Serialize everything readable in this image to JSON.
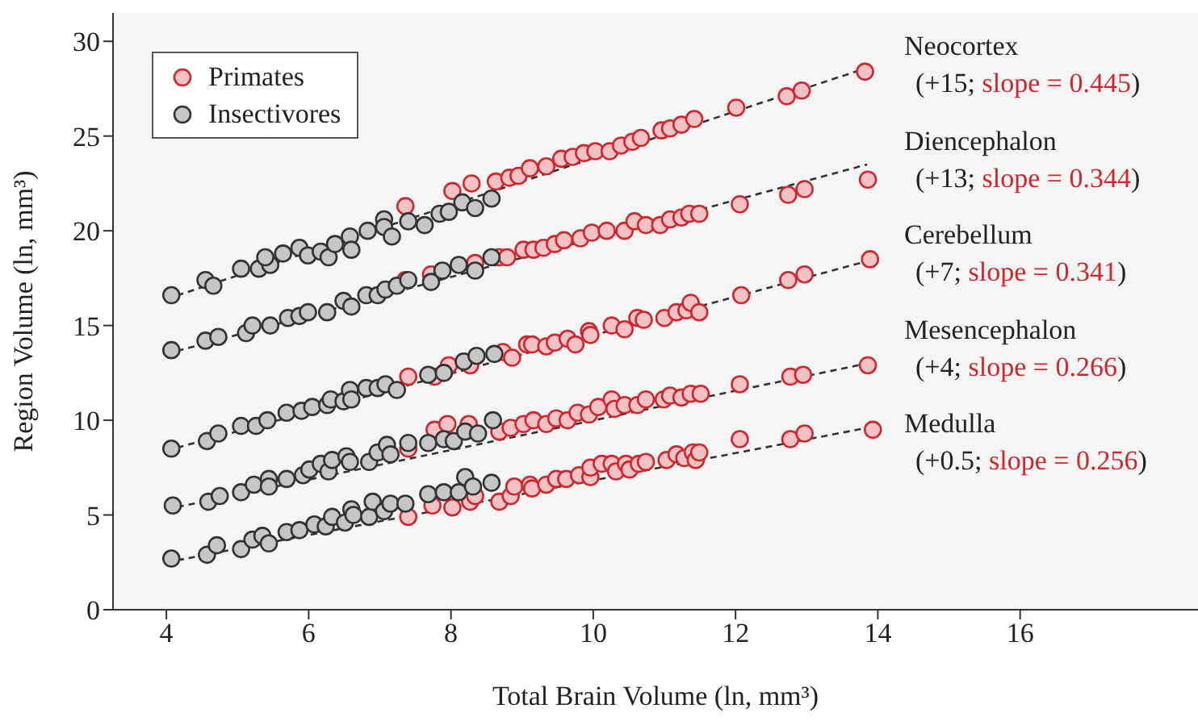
{
  "chart_data": {
    "type": "scatter",
    "xlabel": "Total Brain Volume (ln, mm³)",
    "ylabel": "Region Volume (ln, mm³)",
    "xlim": [
      3.25,
      18.5
    ],
    "ylim": [
      0,
      31.5
    ],
    "xticks": [
      4,
      6,
      8,
      10,
      12,
      14,
      16
    ],
    "yticks": [
      0,
      5,
      10,
      15,
      20,
      25,
      30
    ],
    "legend": "top left",
    "annotations": [
      "Neocortex",
      "(+15; slope = 0.445)",
      "Diencephalon",
      "(+13; slope = 0.344)",
      "Cerebellum",
      "(+7; slope = 0.341)",
      "Mesencephalon",
      "(+4; slope = 0.266)",
      "Medulla",
      "(+0.5; slope = 0.256)"
    ],
    "series": [
      {
        "name": "Primates",
        "marker": "circle",
        "color": "#d0262e",
        "x": [
          7.36,
          8.02,
          8.29,
          8.63,
          8.82,
          8.95,
          9.11,
          9.34,
          9.55,
          9.71,
          9.87,
          10.03,
          10.23,
          10.39,
          10.55,
          10.67,
          10.96,
          11.08,
          11.24,
          11.42,
          12.01,
          12.72,
          12.93,
          13.82,
          7.36,
          7.72,
          8.34,
          8.68,
          8.79,
          9.02,
          9.16,
          9.3,
          9.46,
          9.59,
          9.82,
          9.98,
          10.19,
          10.44,
          10.58,
          10.74,
          10.94,
          11.08,
          11.24,
          11.35,
          11.49,
          12.06,
          12.74,
          12.97,
          13.86,
          7.4,
          7.77,
          7.97,
          8.27,
          8.73,
          8.86,
          9.07,
          9.14,
          9.34,
          9.46,
          9.64,
          9.75,
          9.94,
          9.96,
          10.26,
          10.44,
          10.62,
          10.71,
          11.0,
          11.17,
          11.31,
          11.37,
          11.49,
          12.08,
          12.74,
          12.97,
          13.89,
          7.4,
          7.77,
          7.95,
          8.25,
          8.68,
          8.84,
          9.02,
          9.16,
          9.34,
          9.48,
          9.64,
          9.78,
          9.94,
          10.07,
          10.26,
          10.3,
          10.44,
          10.62,
          10.74,
          10.99,
          11.08,
          11.24,
          11.37,
          11.51,
          12.06,
          12.77,
          12.95,
          13.86,
          7.4,
          7.74,
          8.02,
          8.27,
          8.34,
          8.68,
          8.84,
          8.89,
          9.11,
          9.14,
          9.34,
          9.48,
          9.62,
          9.8,
          9.96,
          9.96,
          10.12,
          10.26,
          10.32,
          10.46,
          10.51,
          10.64,
          10.74,
          11.03,
          11.17,
          11.28,
          11.4,
          11.44,
          11.49,
          12.06,
          12.77,
          12.97,
          13.93
        ],
        "values": [
          21.3,
          22.1,
          22.5,
          22.6,
          22.8,
          22.9,
          23.3,
          23.4,
          23.8,
          23.9,
          24.1,
          24.2,
          24.2,
          24.5,
          24.7,
          24.9,
          25.3,
          25.4,
          25.6,
          25.9,
          26.5,
          27.1,
          27.4,
          28.4,
          17.4,
          17.7,
          18.3,
          18.6,
          18.6,
          19.0,
          19.0,
          19.1,
          19.3,
          19.5,
          19.6,
          19.9,
          20.0,
          20.0,
          20.5,
          20.3,
          20.3,
          20.6,
          20.7,
          20.9,
          20.9,
          21.4,
          21.9,
          22.2,
          22.7,
          12.3,
          12.3,
          12.9,
          12.9,
          13.6,
          13.3,
          14.0,
          14.0,
          13.9,
          14.1,
          14.3,
          14.0,
          14.7,
          14.5,
          15.0,
          14.8,
          15.4,
          15.3,
          15.4,
          15.7,
          15.8,
          16.2,
          15.7,
          16.6,
          17.4,
          17.7,
          18.5,
          8.5,
          9.5,
          9.8,
          9.8,
          9.4,
          9.6,
          9.8,
          10.0,
          9.8,
          10.1,
          10.0,
          10.4,
          10.3,
          10.7,
          11.1,
          10.6,
          10.8,
          10.8,
          11.1,
          11.1,
          11.3,
          11.2,
          11.4,
          11.4,
          11.9,
          12.3,
          12.4,
          12.9,
          4.9,
          5.5,
          5.4,
          5.7,
          6.0,
          5.7,
          6.0,
          6.5,
          6.6,
          6.4,
          6.6,
          6.9,
          6.9,
          7.1,
          7.0,
          7.5,
          7.7,
          7.7,
          7.3,
          7.7,
          7.4,
          7.7,
          7.8,
          7.9,
          8.2,
          8.0,
          8.3,
          7.9,
          8.3,
          9.0,
          9.0,
          9.3,
          9.5
        ]
      },
      {
        "name": "Insectivores",
        "marker": "circle",
        "color": "#333333",
        "x": [
          4.07,
          4.55,
          4.66,
          5.05,
          5.3,
          5.46,
          5.39,
          5.64,
          5.87,
          5.99,
          6.17,
          6.28,
          6.37,
          6.58,
          6.6,
          6.83,
          7.06,
          7.06,
          7.17,
          7.4,
          7.63,
          7.84,
          7.97,
          8.16,
          8.34,
          8.57,
          4.07,
          4.55,
          4.73,
          5.12,
          5.21,
          5.46,
          5.71,
          5.87,
          5.99,
          6.26,
          6.49,
          6.6,
          6.81,
          6.97,
          7.08,
          7.24,
          7.4,
          7.72,
          7.88,
          8.11,
          8.34,
          8.57,
          4.07,
          4.57,
          4.73,
          5.05,
          5.26,
          5.42,
          5.69,
          5.9,
          6.05,
          6.26,
          6.31,
          6.49,
          6.58,
          6.6,
          6.81,
          6.97,
          7.08,
          7.24,
          7.68,
          7.9,
          8.18,
          8.36,
          8.61,
          4.09,
          4.59,
          4.75,
          5.05,
          5.23,
          5.44,
          5.44,
          5.69,
          5.92,
          6.01,
          6.17,
          6.28,
          6.33,
          6.53,
          6.58,
          6.85,
          6.97,
          7.1,
          7.15,
          7.4,
          7.68,
          7.9,
          8.04,
          8.2,
          8.38,
          8.59,
          4.07,
          4.57,
          4.71,
          5.05,
          5.21,
          5.35,
          5.44,
          5.69,
          5.87,
          6.08,
          6.24,
          6.33,
          6.51,
          6.6,
          6.63,
          6.85,
          6.9,
          7.06,
          7.15,
          7.36,
          7.68,
          7.9,
          8.11,
          8.2,
          8.31,
          8.57
        ],
        "values": [
          16.6,
          17.4,
          17.1,
          18.0,
          18.0,
          18.2,
          18.6,
          18.8,
          19.1,
          18.7,
          18.9,
          18.6,
          19.3,
          19.7,
          19.0,
          20.0,
          20.6,
          20.2,
          19.7,
          20.5,
          20.3,
          20.9,
          21.0,
          21.5,
          21.2,
          21.7,
          13.7,
          14.2,
          14.4,
          14.6,
          15.0,
          15.0,
          15.4,
          15.5,
          15.7,
          15.7,
          16.3,
          16.0,
          16.6,
          16.6,
          16.9,
          17.1,
          17.4,
          17.3,
          17.9,
          18.2,
          17.9,
          18.6,
          8.5,
          8.9,
          9.3,
          9.7,
          9.7,
          10.0,
          10.4,
          10.5,
          10.7,
          10.8,
          11.1,
          11.0,
          11.6,
          11.1,
          11.7,
          11.7,
          11.9,
          11.6,
          12.4,
          12.5,
          13.1,
          13.4,
          13.5,
          5.5,
          5.7,
          6.0,
          6.2,
          6.6,
          6.9,
          6.5,
          6.9,
          7.1,
          7.4,
          7.7,
          7.3,
          7.9,
          8.1,
          7.8,
          7.8,
          8.3,
          8.7,
          8.2,
          8.8,
          8.8,
          9.0,
          8.9,
          9.4,
          9.3,
          10.0,
          2.7,
          2.9,
          3.4,
          3.2,
          3.7,
          3.9,
          3.5,
          4.1,
          4.2,
          4.5,
          4.4,
          4.9,
          4.6,
          5.3,
          5.0,
          4.9,
          5.7,
          5.2,
          5.6,
          5.6,
          6.1,
          6.2,
          6.2,
          7.0,
          6.5,
          6.7
        ]
      },
      {
        "type": "line",
        "color": "#333333",
        "line_style": "dashed",
        "x": [
          4,
          13.85
        ],
        "values": [
          16.4,
          28.6
        ]
      },
      {
        "type": "line",
        "color": "#333333",
        "line_style": "dashed",
        "x": [
          4,
          13.85
        ],
        "values": [
          13.5,
          23.5
        ]
      },
      {
        "type": "line",
        "color": "#333333",
        "line_style": "dashed",
        "x": [
          4,
          13.85
        ],
        "values": [
          8.4,
          18.4
        ]
      },
      {
        "type": "line",
        "color": "#333333",
        "line_style": "dashed",
        "x": [
          4,
          13.85
        ],
        "values": [
          5.3,
          13.0
        ]
      },
      {
        "type": "line",
        "color": "#333333",
        "line_style": "dashed",
        "x": [
          4,
          13.85
        ],
        "values": [
          2.5,
          9.6
        ]
      }
    ]
  }
}
